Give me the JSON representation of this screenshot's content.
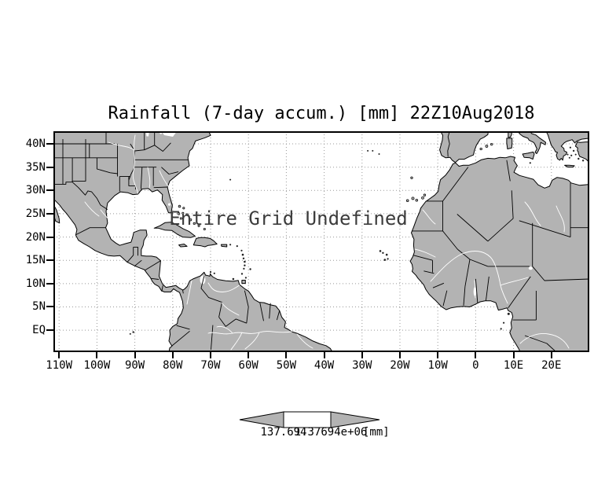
{
  "title": "Rainfall (7-day accum.) [mm] 22Z10Aug2018",
  "map": {
    "message": "Entire Grid Undefined",
    "lat_labels": [
      "40N",
      "35N",
      "30N",
      "25N",
      "20N",
      "15N",
      "10N",
      "5N",
      "EQ"
    ],
    "lon_labels": [
      "110W",
      "100W",
      "90W",
      "80W",
      "70W",
      "60W",
      "50W",
      "40W",
      "30W",
      "20W",
      "10W",
      "0",
      "10E",
      "20E"
    ]
  },
  "colorbar": {
    "min_label": "137.694",
    "max_label": "1.37694e+06",
    "units": "[mm]"
  },
  "colors": {
    "land": "#b3b3b3",
    "ocean": "#ffffff",
    "grid": "#999999",
    "frame": "#000000"
  },
  "chart_data": {
    "type": "heatmap",
    "title": "Rainfall (7-day accum.) [mm] 22Z10Aug2018",
    "variable": "Rainfall (7-day accumulation)",
    "units": "mm",
    "valid_time": "22Z10Aug2018",
    "status": "Entire Grid Undefined",
    "values": [],
    "x_ticks": [
      "110W",
      "100W",
      "90W",
      "80W",
      "70W",
      "60W",
      "50W",
      "40W",
      "30W",
      "20W",
      "10W",
      "0",
      "10E",
      "20E"
    ],
    "y_ticks": [
      "EQ",
      "5N",
      "10N",
      "15N",
      "20N",
      "25N",
      "30N",
      "35N",
      "40N"
    ],
    "xlim": [
      "111.5W",
      "30E"
    ],
    "ylim": [
      "4.7S",
      "42.7N"
    ],
    "grid": true,
    "colorbar": {
      "min": "137.694",
      "max": "1.37694e+06",
      "units": "[mm]"
    }
  }
}
